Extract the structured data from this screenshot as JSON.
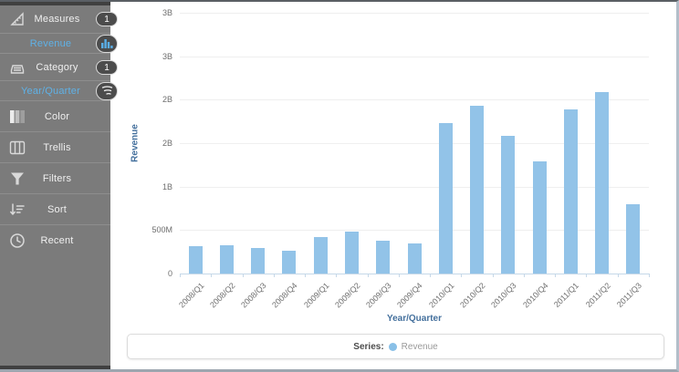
{
  "sidebar": {
    "items": [
      {
        "label": "Measures",
        "badge": "1",
        "icon": "measures-icon"
      },
      {
        "label": "Revenue",
        "badge_icon": "bar-chart-icon"
      },
      {
        "label": "Category",
        "badge": "1",
        "icon": "category-icon"
      },
      {
        "label": "Year/Quarter",
        "badge_icon": "drill-icon"
      },
      {
        "label": "Color",
        "icon": "color-icon"
      },
      {
        "label": "Trellis",
        "icon": "trellis-icon"
      },
      {
        "label": "Filters",
        "icon": "filters-icon"
      },
      {
        "label": "Sort",
        "icon": "sort-icon"
      },
      {
        "label": "Recent",
        "icon": "recent-icon"
      }
    ]
  },
  "chart_data": {
    "type": "bar",
    "title": "",
    "xlabel": "Year/Quarter",
    "ylabel": "Revenue",
    "categories": [
      "2008/Q1",
      "2008/Q2",
      "2008/Q3",
      "2008/Q4",
      "2009/Q1",
      "2009/Q2",
      "2009/Q3",
      "2009/Q4",
      "2010/Q1",
      "2010/Q2",
      "2010/Q3",
      "2010/Q4",
      "2011/Q1",
      "2011/Q2",
      "2011/Q3"
    ],
    "values_millions": [
      310,
      325,
      295,
      265,
      420,
      485,
      375,
      350,
      1730,
      1930,
      1580,
      1290,
      1890,
      2090,
      800
    ],
    "ylim_millions": [
      0,
      3000
    ],
    "y_tick_labels_bottom_to_top": [
      "0",
      "500M",
      "1B",
      "2B",
      "2B",
      "3B",
      "3B"
    ],
    "grid": true,
    "legend_position": "bottom",
    "bar_color": "#92c3e8"
  },
  "legend": {
    "series_label": "Series:",
    "series_name": "Revenue",
    "dot_color": "#89c0e7"
  },
  "colors": {
    "sidebar_bg": "#7b7b7b",
    "sidebar_sub_text": "#5fb1e6",
    "axis_title": "#44709d",
    "bar": "#92c3e8",
    "gridline": "#efefef"
  }
}
